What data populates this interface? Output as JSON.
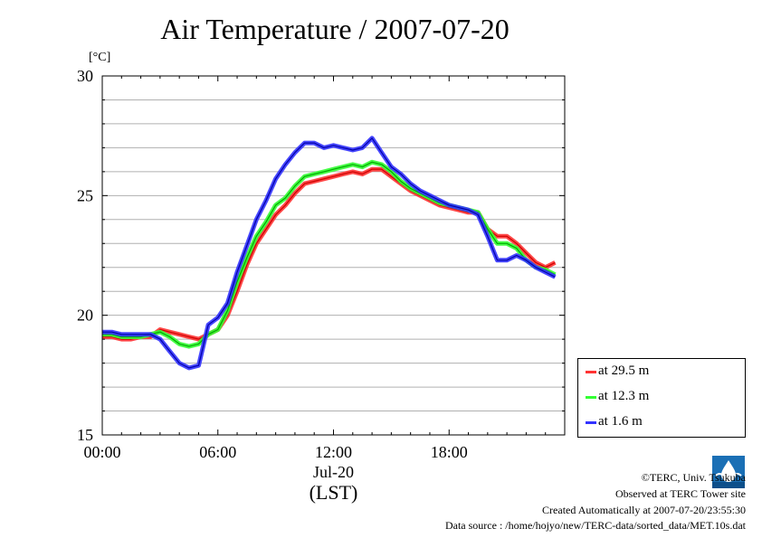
{
  "chart_data": {
    "type": "line",
    "title": "Air Temperature / 2007-07-20",
    "ylabel": "[°C]",
    "ylim": [
      15,
      30
    ],
    "yticks": [
      15,
      20,
      25,
      30
    ],
    "xlim": [
      0,
      24
    ],
    "xticks": [
      {
        "hour": 0,
        "label": "00:00"
      },
      {
        "hour": 6,
        "label": "06:00"
      },
      {
        "hour": 12,
        "label": "12:00"
      },
      {
        "hour": 18,
        "label": "18:00"
      }
    ],
    "xdate": "Jul-20",
    "xunit": "(LST)",
    "grid": true,
    "legend_position": "right",
    "series": [
      {
        "name": "at 29.5 m",
        "color": "#ff3333",
        "x": [
          0,
          0.5,
          1,
          1.5,
          2,
          2.5,
          3,
          3.5,
          4,
          4.5,
          5,
          5.5,
          6,
          6.5,
          7,
          7.5,
          8,
          8.5,
          9,
          9.5,
          10,
          10.5,
          11,
          11.5,
          12,
          12.5,
          13,
          13.5,
          14,
          14.5,
          15,
          15.5,
          16,
          16.5,
          17,
          17.5,
          18,
          18.5,
          19,
          19.5,
          20,
          20.5,
          21,
          21.5,
          22,
          22.5,
          23,
          23.5
        ],
        "y": [
          19.1,
          19.1,
          19.0,
          19.0,
          19.1,
          19.1,
          19.4,
          19.3,
          19.2,
          19.1,
          19.0,
          19.2,
          19.4,
          20.0,
          21.0,
          22.1,
          23.0,
          23.6,
          24.2,
          24.6,
          25.1,
          25.5,
          25.6,
          25.7,
          25.8,
          25.9,
          26.0,
          25.9,
          26.1,
          26.1,
          25.8,
          25.5,
          25.2,
          25.0,
          24.8,
          24.6,
          24.5,
          24.4,
          24.3,
          24.3,
          23.6,
          23.3,
          23.3,
          23.0,
          22.6,
          22.2,
          22.0,
          22.2
        ]
      },
      {
        "name": "at 12.3 m",
        "color": "#33ff33",
        "x": [
          0,
          0.5,
          1,
          1.5,
          2,
          2.5,
          3,
          3.5,
          4,
          4.5,
          5,
          5.5,
          6,
          6.5,
          7,
          7.5,
          8,
          8.5,
          9,
          9.5,
          10,
          10.5,
          11,
          11.5,
          12,
          12.5,
          13,
          13.5,
          14,
          14.5,
          15,
          15.5,
          16,
          16.5,
          17,
          17.5,
          18,
          18.5,
          19,
          19.5,
          20,
          20.5,
          21,
          21.5,
          22,
          22.5,
          23,
          23.5
        ],
        "y": [
          19.2,
          19.2,
          19.1,
          19.1,
          19.1,
          19.2,
          19.3,
          19.1,
          18.8,
          18.7,
          18.8,
          19.2,
          19.4,
          20.2,
          21.4,
          22.4,
          23.3,
          23.9,
          24.6,
          24.9,
          25.4,
          25.8,
          25.9,
          26.0,
          26.1,
          26.2,
          26.3,
          26.2,
          26.4,
          26.3,
          26.0,
          25.6,
          25.3,
          25.1,
          24.9,
          24.7,
          24.6,
          24.5,
          24.4,
          24.3,
          23.6,
          23.0,
          23.0,
          22.8,
          22.3,
          22.0,
          21.9,
          21.7
        ]
      },
      {
        "name": "at 1.6 m",
        "color": "#3333ff",
        "x": [
          0,
          0.5,
          1,
          1.5,
          2,
          2.5,
          3,
          3.5,
          4,
          4.5,
          5,
          5.5,
          6,
          6.5,
          7,
          7.5,
          8,
          8.5,
          9,
          9.5,
          10,
          10.5,
          11,
          11.5,
          12,
          12.5,
          13,
          13.5,
          14,
          14.5,
          15,
          15.5,
          16,
          16.5,
          17,
          17.5,
          18,
          18.5,
          19,
          19.5,
          20,
          20.5,
          21,
          21.5,
          22,
          22.5,
          23,
          23.5
        ],
        "y": [
          19.3,
          19.3,
          19.2,
          19.2,
          19.2,
          19.2,
          19.0,
          18.5,
          18.0,
          17.8,
          17.9,
          19.6,
          19.9,
          20.5,
          21.8,
          22.9,
          24.0,
          24.8,
          25.7,
          26.3,
          26.8,
          27.2,
          27.2,
          27.0,
          27.1,
          27.0,
          26.9,
          27.0,
          27.4,
          26.8,
          26.2,
          25.9,
          25.5,
          25.2,
          25.0,
          24.8,
          24.6,
          24.5,
          24.4,
          24.2,
          23.3,
          22.3,
          22.3,
          22.5,
          22.3,
          22.0,
          21.8,
          21.6
        ]
      }
    ]
  },
  "footer": {
    "copyright": "©TERC, Univ. Tsukuba",
    "observed": "Observed at TERC Tower site",
    "created": "Created Automatically at 2007-07-20/23:55:30",
    "source": "Data source : /home/hojyo/new/TERC-data/sorted_data/MET.10s.dat",
    "logo_text": "TERC"
  }
}
